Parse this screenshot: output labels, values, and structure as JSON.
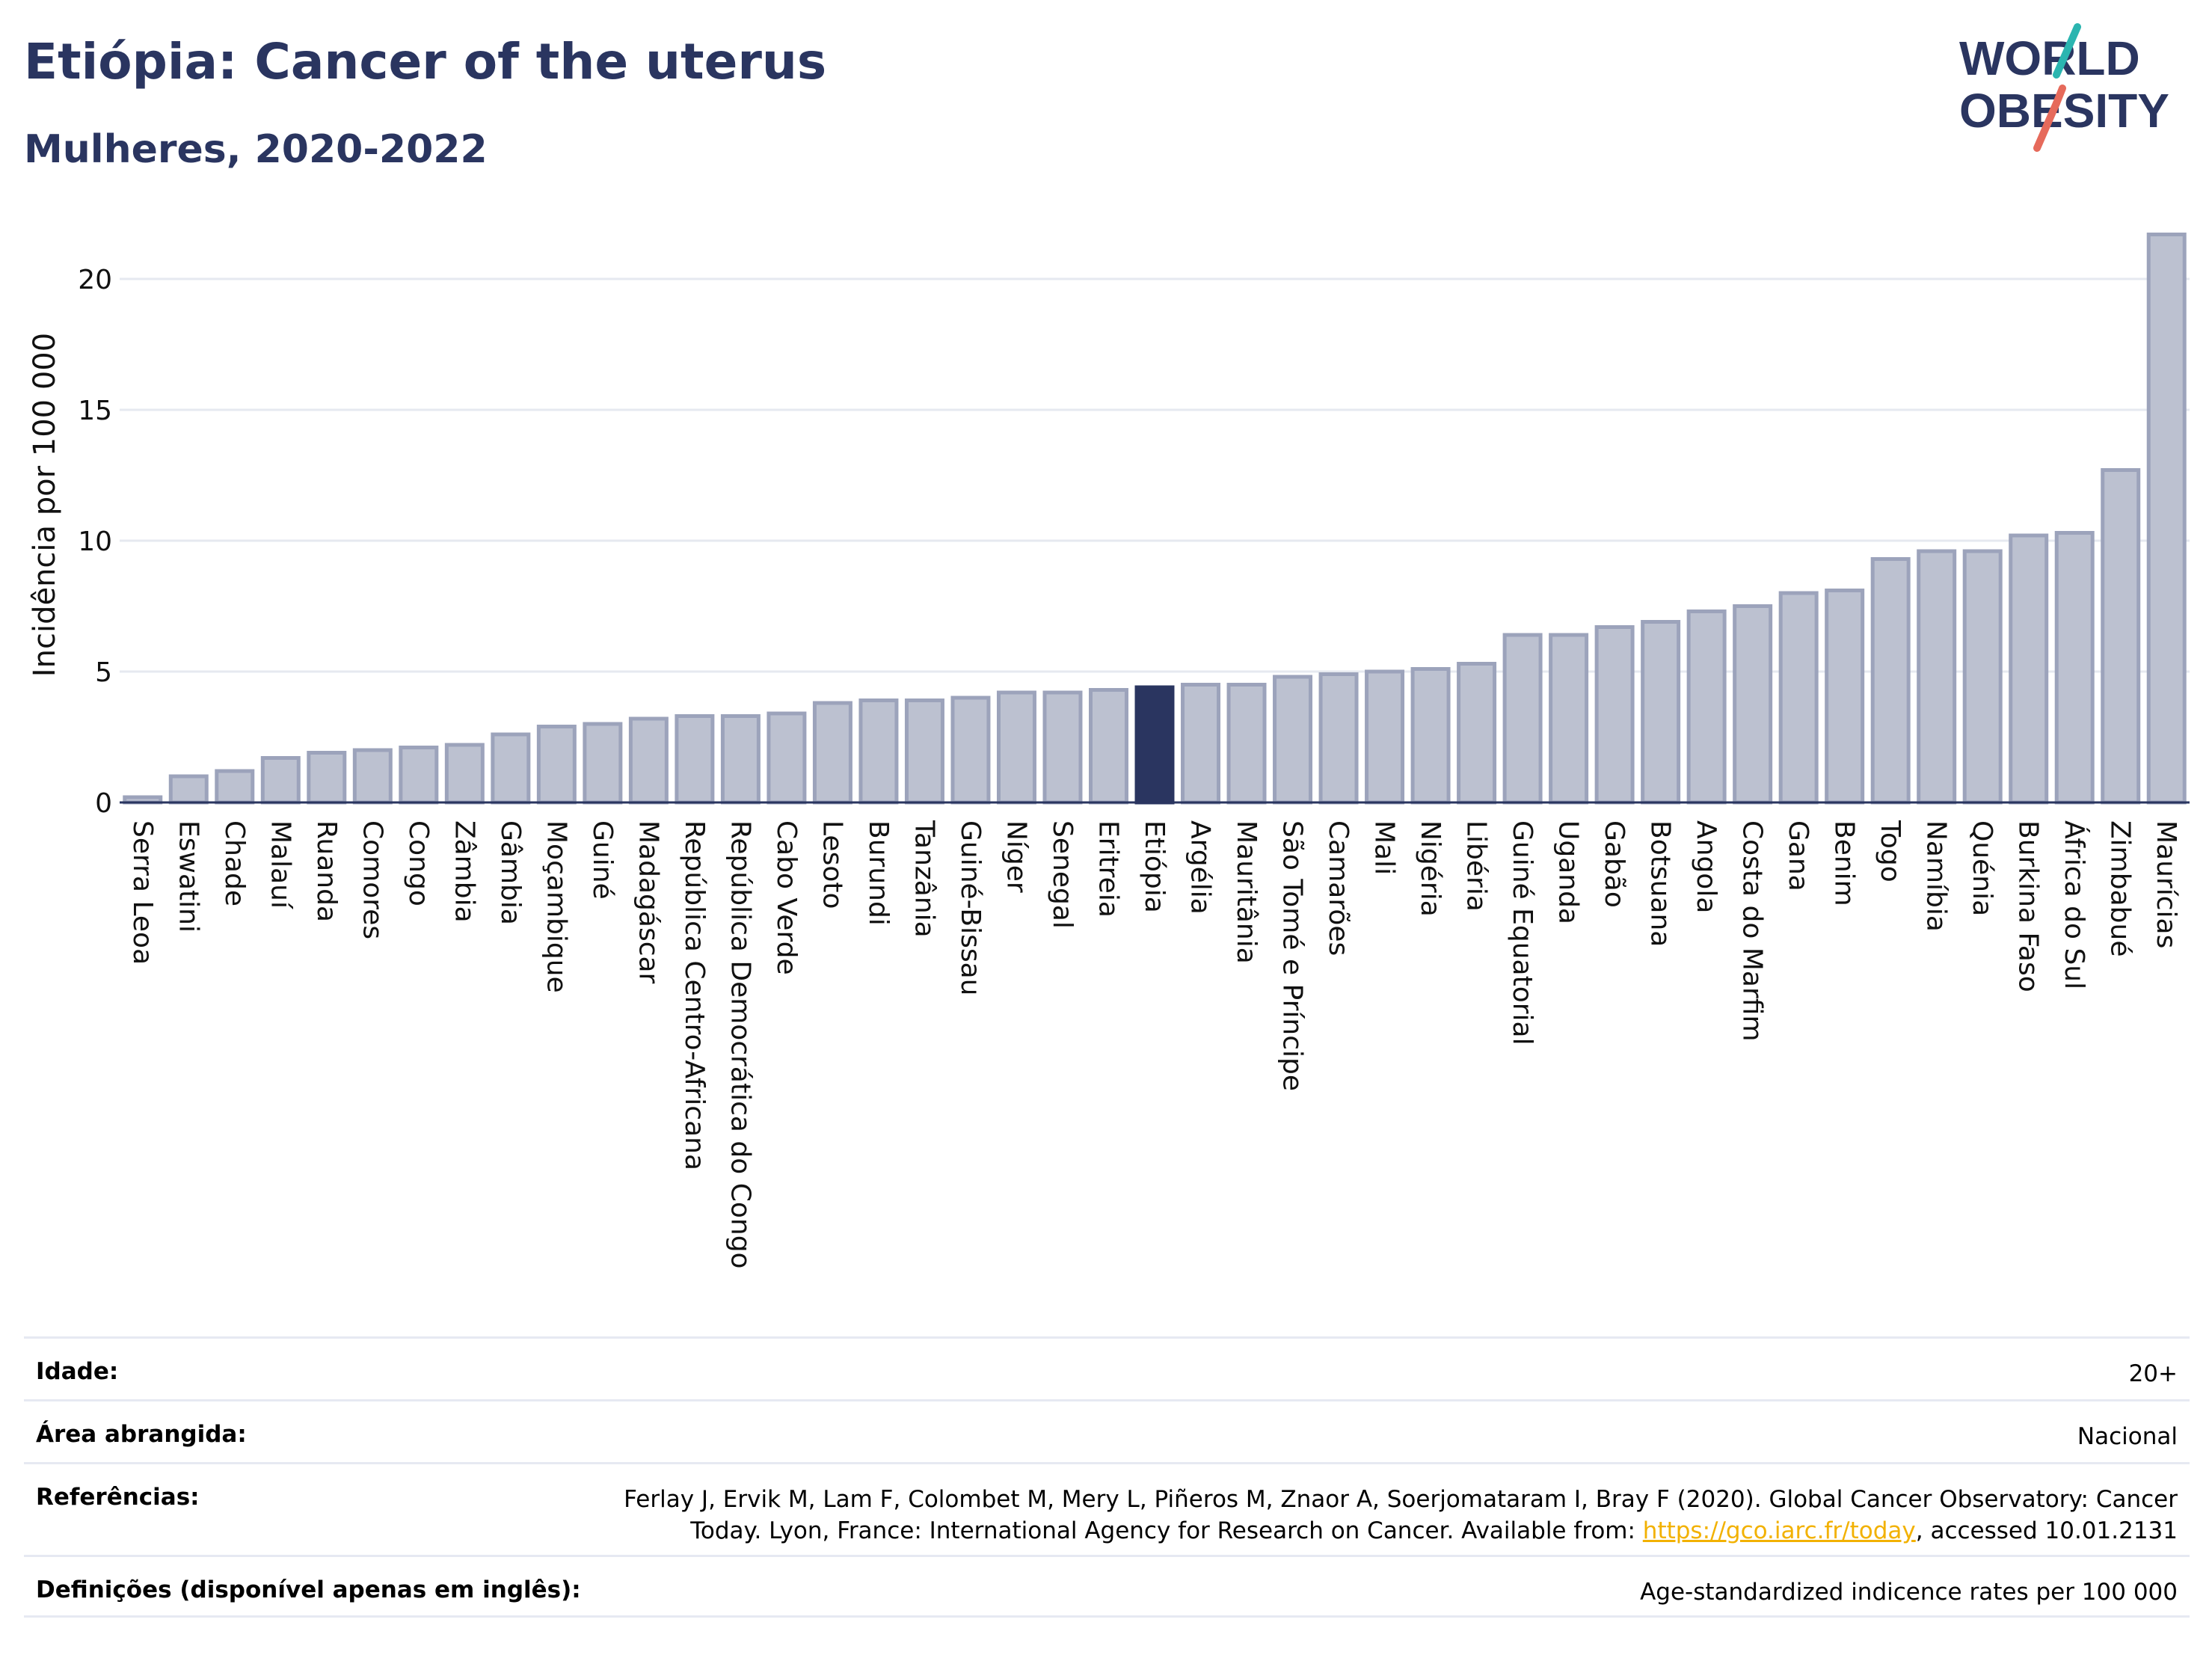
{
  "header": {
    "title": "Etiópia: Cancer of the uterus",
    "subtitle": "Mulheres, 2020-2022",
    "logo_line1": "WORLD",
    "logo_line2": "OBESITY"
  },
  "colors": {
    "bar_fill": "#bcc1d0",
    "bar_stroke": "#9ca3bb",
    "highlight": "#2a3560",
    "title": "#2a3560",
    "gridline": "#e6e9f0",
    "logo_teal": "#2bb5b0",
    "logo_red": "#e66a5b",
    "link": "#f2b100"
  },
  "chart_data": {
    "type": "bar",
    "title": "Etiópia: Cancer of the uterus",
    "subtitle": "Mulheres, 2020-2022",
    "xlabel": "",
    "ylabel": "Incidência por 100 000",
    "ylim": [
      0,
      22.5
    ],
    "yticks": [
      0,
      5,
      10,
      15,
      20
    ],
    "grid": true,
    "highlight_category": "Etiópia",
    "categories": [
      "Serra Leoa",
      "Eswatini",
      "Chade",
      "Malauí",
      "Ruanda",
      "Comores",
      "Congo",
      "Zâmbia",
      "Gâmbia",
      "Moçambique",
      "Guiné",
      "Madagáscar",
      "República Centro-Africana",
      "República Democrática do Congo",
      "Cabo Verde",
      "Lesoto",
      "Burundi",
      "Tanzânia",
      "Guiné-Bissau",
      "Níger",
      "Senegal",
      "Eritreia",
      "Etiópia",
      "Argélia",
      "Mauritânia",
      "São Tomé e Príncipe",
      "Camarões",
      "Mali",
      "Nigéria",
      "Libéria",
      "Guiné Equatorial",
      "Uganda",
      "Gabão",
      "Botsuana",
      "Angola",
      "Costa do Marfim",
      "Gana",
      "Benim",
      "Togo",
      "Namíbia",
      "Quénia",
      "Burkina Faso",
      "África do Sul",
      "Zimbabué",
      "Maurícias"
    ],
    "values": [
      0.2,
      1.0,
      1.2,
      1.7,
      1.9,
      2.0,
      2.1,
      2.2,
      2.6,
      2.9,
      3.0,
      3.2,
      3.3,
      3.3,
      3.4,
      3.8,
      3.9,
      3.9,
      4.0,
      4.2,
      4.2,
      4.3,
      4.4,
      4.5,
      4.5,
      4.8,
      4.9,
      5.0,
      5.1,
      5.3,
      6.4,
      6.4,
      6.7,
      6.9,
      7.3,
      7.5,
      8.0,
      8.1,
      9.3,
      9.6,
      9.6,
      10.2,
      10.3,
      12.7,
      21.7
    ]
  },
  "info": {
    "rows": [
      {
        "label": "Idade:",
        "value": "20+"
      },
      {
        "label": "Área abrangida:",
        "value": "Nacional"
      },
      {
        "label": "Referências:",
        "value_pre": "Ferlay J, Ervik M, Lam F, Colombet M, Mery L, Piñeros M, Znaor A, Soerjomataram I, Bray F (2020). Global Cancer Observatory: Cancer Today. Lyon, France: International Agency for Research on Cancer. Available from: ",
        "link": "https://gco.iarc.fr/today",
        "value_post": ", accessed 10.01.2131"
      },
      {
        "label": "Definições (disponível apenas em inglês):",
        "value": "Age-standardized indicence rates per 100 000"
      }
    ]
  }
}
